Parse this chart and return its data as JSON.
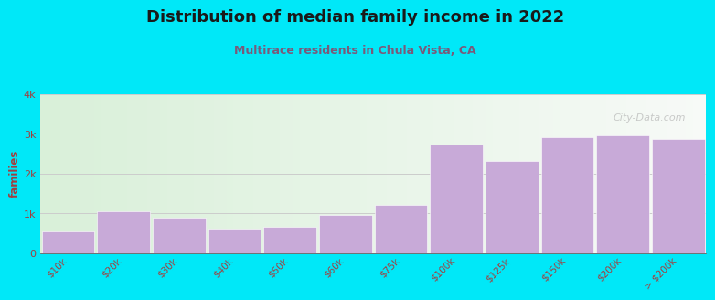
{
  "title": "Distribution of median family income in 2022",
  "subtitle": "Multirace residents in Chula Vista, CA",
  "xlabel": "",
  "ylabel": "families",
  "categories": [
    "$10k",
    "$20k",
    "$30k",
    "$40k",
    "$50k",
    "$60k",
    "$75k",
    "$100k",
    "$125k",
    "$150k",
    "$200k",
    "> $200k"
  ],
  "values": [
    550,
    1050,
    900,
    620,
    660,
    950,
    1220,
    2720,
    2320,
    2920,
    2970,
    2860
  ],
  "bar_color": "#c8aad8",
  "background_color": "#00e8f8",
  "title_color": "#1a1a1a",
  "subtitle_color": "#7a5a7a",
  "ylabel_color": "#a04040",
  "tick_color": "#a04040",
  "watermark": "City-Data.com",
  "ylim": [
    0,
    4000
  ],
  "yticks": [
    0,
    1000,
    2000,
    3000,
    4000
  ],
  "ytick_labels": [
    "0",
    "1k",
    "2k",
    "3k",
    "4k"
  ],
  "grid_color": "#cccccc",
  "plot_bg_left": "#d8efd0",
  "plot_bg_right": "#e8e8f0"
}
